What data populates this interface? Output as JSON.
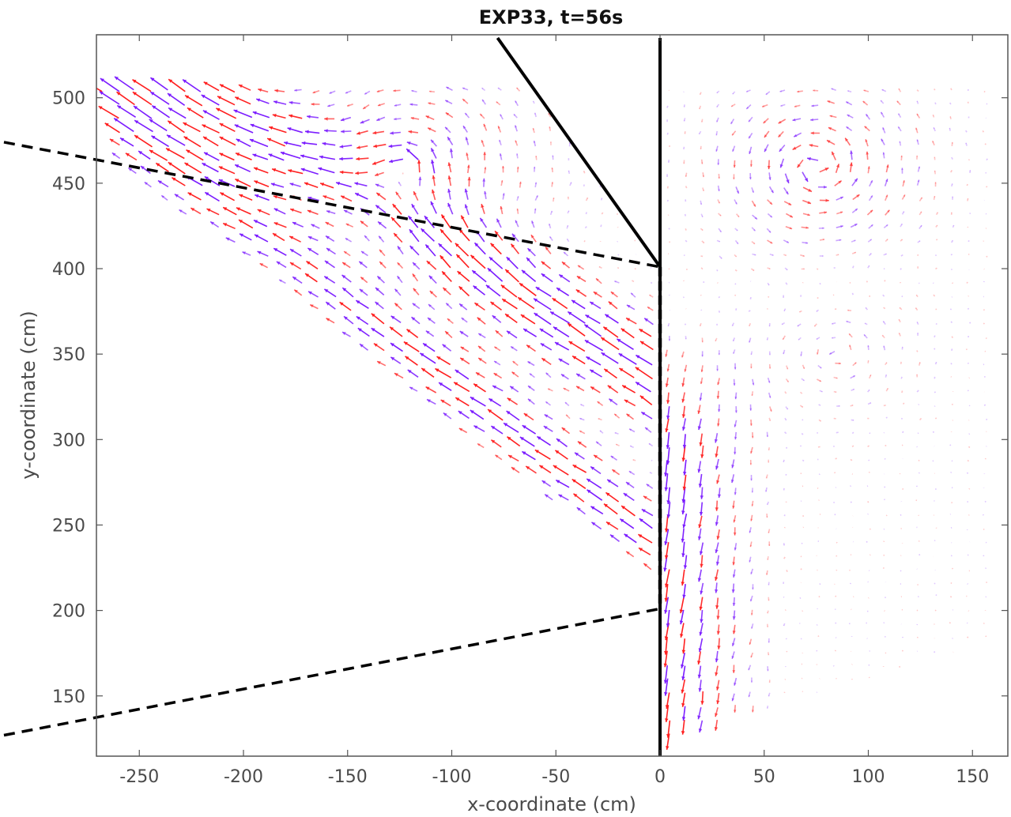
{
  "chart_data": {
    "type": "quiver",
    "title": "EXP33, t=56s",
    "xlabel": "x-coordinate (cm)",
    "ylabel": "y-coordinate (cm)",
    "xlim": [
      -270,
      165
    ],
    "ylim": [
      115,
      535
    ],
    "xticks": [
      -250,
      -200,
      -150,
      -100,
      -50,
      0,
      50,
      100,
      150
    ],
    "yticks": [
      150,
      200,
      250,
      300,
      350,
      400,
      450,
      500
    ],
    "grid": false,
    "colors": {
      "series_a": "#ff1f1f",
      "series_b": "#7b1cff",
      "structure": "#000000"
    },
    "structures": {
      "vertical_wall": {
        "x": 0,
        "y_from": 115,
        "y_to": 535
      },
      "angled_wall": [
        [
          -78,
          535
        ],
        [
          0,
          401
        ]
      ],
      "dashed_lines": [
        [
          [
            -315,
            474
          ],
          [
            0,
            401
          ]
        ],
        [
          [
            -315,
            127
          ],
          [
            0,
            201
          ]
        ]
      ],
      "dashed_centerline": {
        "x": 0,
        "y_from": 201,
        "y_to": 401
      }
    },
    "grid_spacing_cm": 8,
    "vector_regions": [
      {
        "region": "left-upper-band",
        "color": "mixed",
        "direction": "up-left",
        "strength": "strong"
      },
      {
        "region": "left-gyre",
        "center": [
          -120,
          460
        ],
        "color": "mixed",
        "direction": "counter-clockwise"
      },
      {
        "region": "near-wall-downflow",
        "x_from": 0,
        "x_to": 60,
        "color": "mixed",
        "direction": "down"
      },
      {
        "region": "right-gyre",
        "center": [
          75,
          460
        ],
        "color": "mixed",
        "direction": "counter-clockwise"
      },
      {
        "region": "right-field",
        "color": "mixed",
        "direction": "weak"
      }
    ]
  }
}
